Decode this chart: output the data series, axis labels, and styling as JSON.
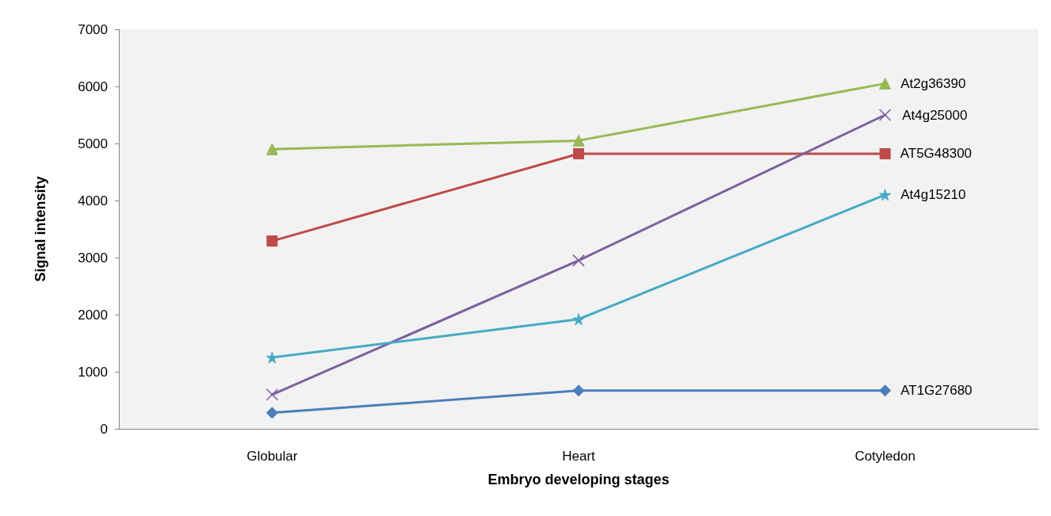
{
  "chart_data": {
    "type": "line",
    "xlabel": "Embryo developing stages",
    "ylabel": "Signal intensity",
    "categories": [
      "Globular",
      "Heart",
      "Cotyledon"
    ],
    "series": [
      {
        "name": "AT1G27680",
        "color": "#4a7ebb",
        "marker": "diamond",
        "values": [
          280,
          670,
          670
        ]
      },
      {
        "name": "AT5G48300",
        "color": "#be4b48",
        "marker": "square",
        "values": [
          3290,
          4820,
          4820
        ]
      },
      {
        "name": "At2g36390",
        "color": "#98b954",
        "marker": "triangle",
        "values": [
          4900,
          5050,
          6050
        ]
      },
      {
        "name": "At4g25000",
        "color": "#7d60a0",
        "marker": "cross",
        "values": [
          600,
          2950,
          5500
        ]
      },
      {
        "name": "At4g15210",
        "color": "#46aac5",
        "marker": "star",
        "values": [
          1250,
          1920,
          4100
        ]
      }
    ],
    "ylim": [
      0,
      7000
    ],
    "yticks": [
      0,
      1000,
      2000,
      3000,
      4000,
      5000,
      6000,
      7000
    ],
    "grid": false,
    "legend": false,
    "line_style": "solid"
  }
}
